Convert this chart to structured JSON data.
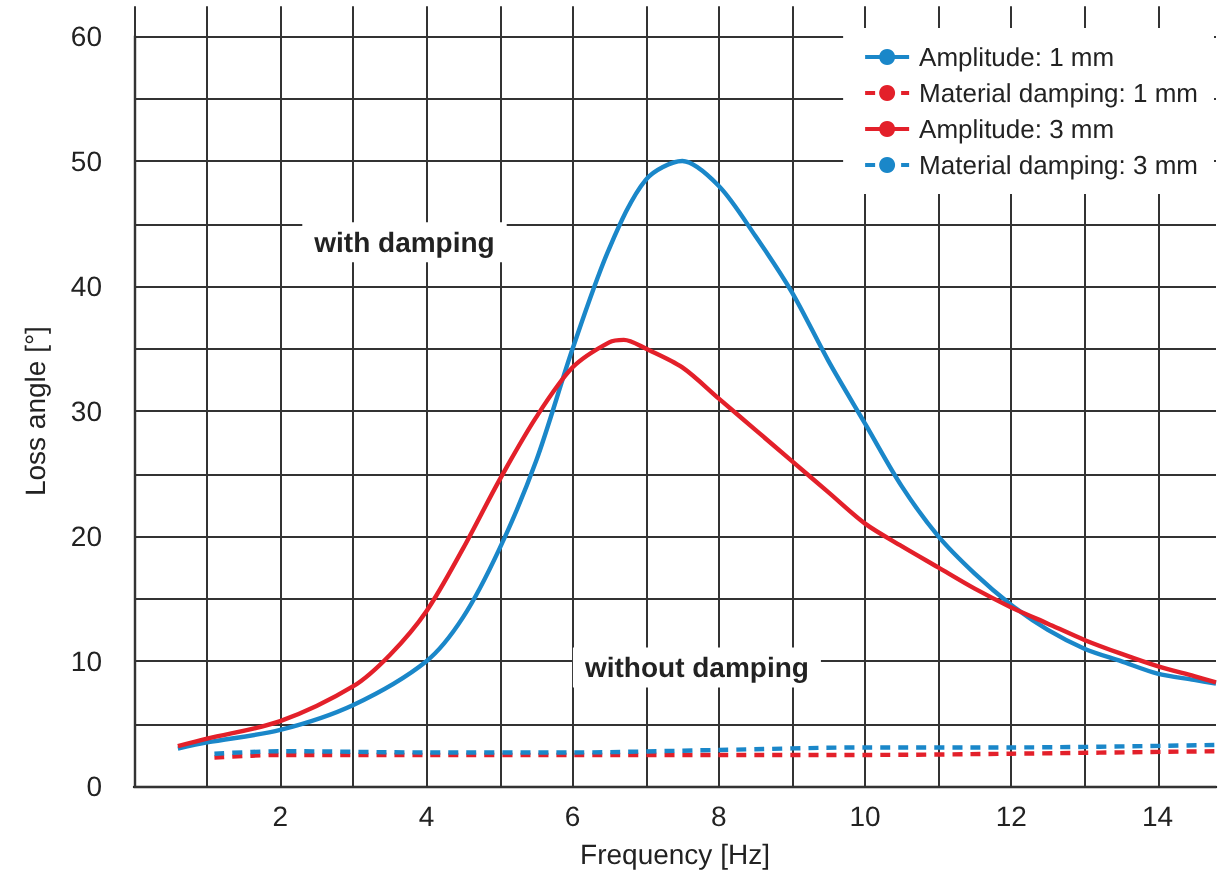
{
  "chart_data": {
    "type": "line",
    "xlabel": "Frequency [Hz]",
    "ylabel": "Loss angle [°]",
    "xlim": [
      0,
      14.8
    ],
    "xticks": [
      {
        "value": 0,
        "label": null
      },
      {
        "value": 1,
        "label": null
      },
      2,
      {
        "value": 3,
        "label": null
      },
      4,
      {
        "value": 5,
        "label": null
      },
      6,
      {
        "value": 7,
        "label": null
      },
      8,
      {
        "value": 9,
        "label": null
      },
      10,
      {
        "value": 11,
        "label": null
      },
      12,
      {
        "value": 13,
        "label": null
      },
      14
    ],
    "ylim": [
      0,
      60
    ],
    "yticks": [
      0,
      {
        "value": 5,
        "label": null
      },
      10,
      {
        "value": 15,
        "label": null
      },
      20,
      {
        "value": 25,
        "label": null
      },
      30,
      {
        "value": 35,
        "label": null
      },
      40,
      {
        "value": 45,
        "label": null
      },
      50,
      {
        "value": 55,
        "label": null
      },
      60
    ],
    "grid": true,
    "legend": "top right",
    "marker": "none",
    "annotations": [
      "with damping",
      "without damping"
    ],
    "series": [
      {
        "name": "Amplitude: 1 mm",
        "color": "#1a87c9",
        "line_style": "solid",
        "x": [
          0.6,
          1,
          2,
          3,
          4,
          4.5,
          5,
          5.5,
          6,
          6.5,
          7,
          7.5,
          8,
          8.5,
          9,
          9.5,
          10,
          10.5,
          11,
          11.5,
          12,
          12.5,
          13,
          13.5,
          14,
          14.5,
          14.8
        ],
        "values": [
          3,
          3.5,
          4.5,
          6.5,
          10,
          13.5,
          19,
          26,
          35,
          43,
          48.5,
          50,
          48,
          44,
          39.5,
          34,
          29,
          24,
          20,
          17,
          14.5,
          12.5,
          11,
          10,
          9,
          8.5,
          8.2
        ]
      },
      {
        "name": "Material damping: 1 mm",
        "color": "#e3202a",
        "line_style": "dashed",
        "x": [
          1.1,
          2,
          4,
          6,
          8,
          10,
          12,
          14.8
        ],
        "values": [
          2.3,
          2.5,
          2.5,
          2.5,
          2.5,
          2.5,
          2.6,
          2.8
        ]
      },
      {
        "name": "Amplitude: 3 mm",
        "color": "#e3202a",
        "line_style": "solid",
        "x": [
          0.6,
          1,
          2,
          3,
          3.5,
          4,
          4.5,
          5,
          5.5,
          6,
          6.5,
          6.7,
          7,
          7.5,
          8,
          8.5,
          9,
          9.5,
          10,
          10.5,
          11,
          11.5,
          12,
          12.5,
          13,
          13.5,
          14,
          14.5,
          14.8
        ],
        "values": [
          3.2,
          3.8,
          5.2,
          8,
          10.5,
          14,
          19,
          24.5,
          29.5,
          33.5,
          35.5,
          35.7,
          35,
          33.5,
          31,
          28.5,
          26,
          23.5,
          21,
          19.2,
          17.5,
          15.8,
          14.3,
          13,
          11.7,
          10.6,
          9.6,
          8.8,
          8.3
        ]
      },
      {
        "name": "Material damping: 3 mm",
        "color": "#1a87c9",
        "line_style": "dashed",
        "x": [
          1.1,
          2,
          4,
          6,
          8,
          10,
          12,
          14.8
        ],
        "values": [
          2.6,
          2.8,
          2.7,
          2.7,
          2.9,
          3.1,
          3.1,
          3.3
        ]
      }
    ]
  }
}
